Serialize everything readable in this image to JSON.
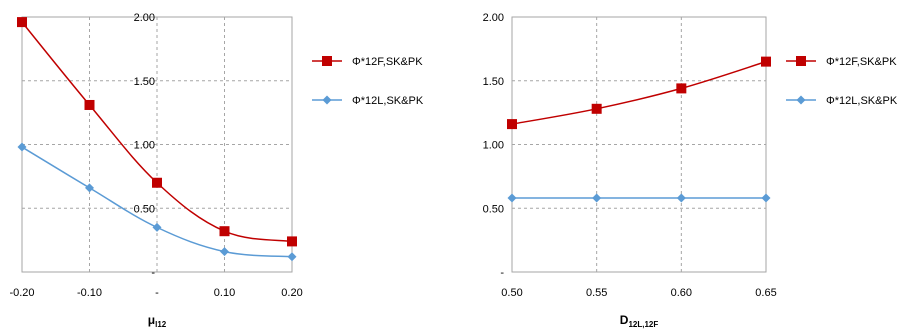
{
  "chart_data": [
    {
      "type": "line",
      "xlabel_main": "μ",
      "xlabel_sub": "l12",
      "x": [
        -0.2,
        -0.1,
        0.0,
        0.1,
        0.2
      ],
      "x_tick_labels": [
        "-0.20",
        "-0.10",
        "-",
        "0.10",
        "0.20"
      ],
      "xlim": [
        -0.2,
        0.2
      ],
      "y_tick_labels": [
        "-",
        "0.50",
        "1.00",
        "1.50",
        "2.00"
      ],
      "y_ticks": [
        0,
        0.5,
        1.0,
        1.5,
        2.0
      ],
      "ylim": [
        0,
        2.0
      ],
      "grid": true,
      "legend_position": "right",
      "series": [
        {
          "name": "Φ*12F,SK&PK",
          "color": "#c00000",
          "marker": "square",
          "smooth": true,
          "values": [
            1.96,
            1.31,
            0.7,
            0.32,
            0.24
          ]
        },
        {
          "name": "Φ*12L,SK&PK",
          "color": "#5b9bd5",
          "marker": "diamond",
          "smooth": true,
          "values": [
            0.98,
            0.66,
            0.35,
            0.16,
            0.12
          ]
        }
      ]
    },
    {
      "type": "line",
      "xlabel_main": "D",
      "xlabel_sub": "12L,12F",
      "x": [
        0.5,
        0.55,
        0.6,
        0.65
      ],
      "x_tick_labels": [
        "0.50",
        "0.55",
        "0.60",
        "0.65"
      ],
      "xlim": [
        0.5,
        0.65
      ],
      "y_tick_labels": [
        "-",
        "0.50",
        "1.00",
        "1.50",
        "2.00"
      ],
      "y_ticks": [
        0,
        0.5,
        1.0,
        1.5,
        2.0
      ],
      "ylim": [
        0,
        2.0
      ],
      "grid": true,
      "legend_position": "right",
      "series": [
        {
          "name": "Φ*12F,SK&PK",
          "color": "#c00000",
          "marker": "square",
          "smooth": true,
          "values": [
            1.16,
            1.28,
            1.44,
            1.65
          ]
        },
        {
          "name": "Φ*12L,SK&PK",
          "color": "#5b9bd5",
          "marker": "diamond",
          "smooth": true,
          "values": [
            0.58,
            0.58,
            0.58,
            0.58
          ]
        }
      ]
    }
  ]
}
